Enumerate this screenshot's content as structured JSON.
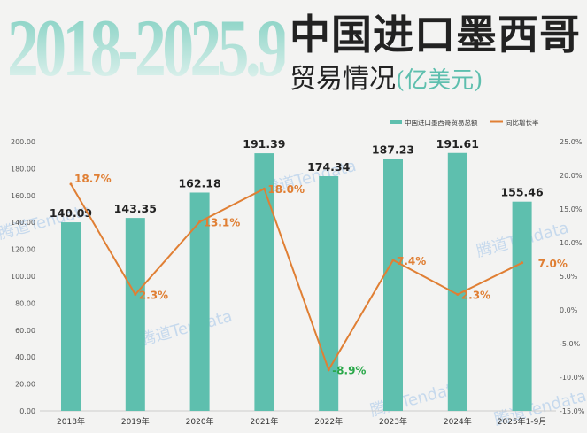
{
  "header": {
    "big_title": "2018-2025.9",
    "title": "中国进口墨西哥",
    "subtitle": "贸易情况",
    "unit": "(亿美元)"
  },
  "watermark": "腾道Tendata",
  "colors": {
    "bar": "#5ebfae",
    "line": "#e07f34",
    "negative_label": "#2aa84a"
  },
  "chart_data": {
    "type": "bar+line",
    "categories": [
      "2018年",
      "2019年",
      "2020年",
      "2021年",
      "2022年",
      "2023年",
      "2024年",
      "2025年1-9月"
    ],
    "series": [
      {
        "name": "中国进口墨西哥贸易总额",
        "type": "bar",
        "axis": "left",
        "values": [
          140.09,
          143.35,
          162.18,
          191.39,
          174.34,
          187.23,
          191.61,
          155.46
        ],
        "labels": [
          "140.09",
          "143.35",
          "162.18",
          "191.39",
          "174.34",
          "187.23",
          "191.61",
          "155.46"
        ]
      },
      {
        "name": "同比增长率",
        "type": "line",
        "axis": "right",
        "values": [
          18.7,
          2.3,
          13.1,
          18.0,
          -8.9,
          7.4,
          2.3,
          7.0
        ],
        "labels": [
          "18.7%",
          "2.3%",
          "13.1%",
          "18.0%",
          "-8.9%",
          "7.4%",
          "2.3%",
          "7.0%"
        ]
      }
    ],
    "left_axis": {
      "ylim": [
        0,
        200
      ],
      "ticks": [
        "0.00",
        "20.00",
        "40.00",
        "60.00",
        "80.00",
        "100.00",
        "120.00",
        "140.00",
        "160.00",
        "180.00",
        "200.00"
      ]
    },
    "right_axis": {
      "ylim": [
        -15,
        25
      ],
      "ticks": [
        "-15.0%",
        "-10.0%",
        "-5.0%",
        "0.0%",
        "5.0%",
        "10.0%",
        "15.0%",
        "20.0%",
        "25.0%"
      ]
    },
    "legend": "top-right",
    "grid": false
  }
}
